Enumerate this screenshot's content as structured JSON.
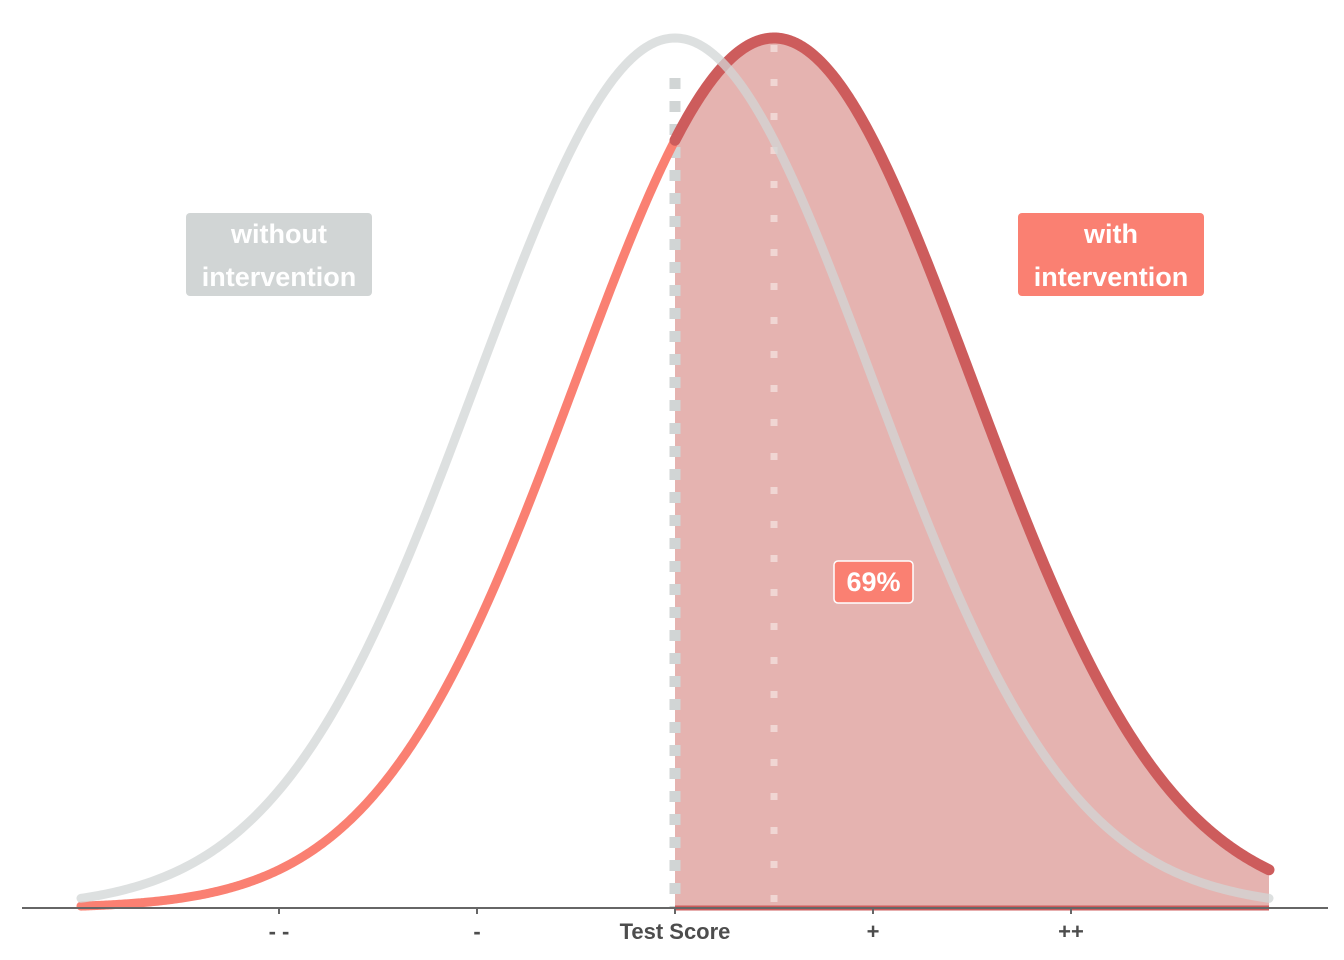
{
  "chart_data": {
    "type": "area",
    "xlabel": "Test Score",
    "x_ticks": [
      {
        "value": -2,
        "label": "- -"
      },
      {
        "value": -1,
        "label": "-"
      },
      {
        "value": 0,
        "label": "Test Score"
      },
      {
        "value": 1,
        "label": "+"
      },
      {
        "value": 2,
        "label": "++"
      }
    ],
    "xlim": [
      -3.0,
      3.0
    ],
    "series": [
      {
        "name": "without intervention",
        "distribution": "normal",
        "mean": 0.0,
        "sd": 1.0,
        "color": "#d1d5d5"
      },
      {
        "name": "with intervention",
        "distribution": "normal",
        "mean": 0.5,
        "sd": 1.0,
        "color": "#fa8072",
        "highlight_color": "#cd5c5c"
      }
    ],
    "shaded_region": {
      "from": 0.0,
      "to": 3.0,
      "series": "with intervention",
      "fill": "#e5b3b0",
      "percent_label": "69%"
    },
    "reference_lines": [
      {
        "x": 0.0,
        "style": "dotted",
        "color": "#d1d5d5"
      },
      {
        "x": 0.5,
        "style": "dotted",
        "color": "#f0d6d3"
      }
    ],
    "grid": false,
    "legend": "none"
  },
  "labels": {
    "without": {
      "line1": "without",
      "line2": "intervention",
      "color": "#d1d5d5"
    },
    "with": {
      "line1": "with",
      "line2": "intervention",
      "color": "#fa8072"
    },
    "percent": {
      "text": "69%",
      "color": "#fa8072"
    }
  }
}
